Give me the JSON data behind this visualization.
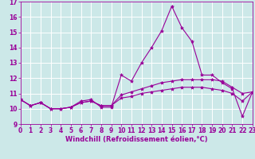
{
  "xlabel": "Windchill (Refroidissement éolien,°C)",
  "bg_color": "#cce8e8",
  "grid_color": "#ffffff",
  "line_color": "#990099",
  "x": [
    0,
    1,
    2,
    3,
    4,
    5,
    6,
    7,
    8,
    9,
    10,
    11,
    12,
    13,
    14,
    15,
    16,
    17,
    18,
    19,
    20,
    21,
    22,
    23
  ],
  "line1": [
    10.6,
    10.2,
    10.4,
    10.0,
    10.0,
    10.1,
    10.5,
    10.6,
    10.1,
    10.1,
    12.2,
    11.8,
    13.0,
    14.0,
    15.1,
    16.7,
    15.3,
    14.4,
    12.2,
    12.2,
    11.7,
    11.3,
    9.5,
    11.1
  ],
  "line2": [
    10.6,
    10.2,
    10.4,
    10.0,
    10.0,
    10.1,
    10.4,
    10.5,
    10.2,
    10.2,
    10.9,
    11.1,
    11.3,
    11.5,
    11.7,
    11.8,
    11.9,
    11.9,
    11.9,
    11.9,
    11.8,
    11.4,
    11.0,
    11.1
  ],
  "line3": [
    10.6,
    10.2,
    10.4,
    10.0,
    10.0,
    10.1,
    10.4,
    10.5,
    10.2,
    10.2,
    10.7,
    10.8,
    11.0,
    11.1,
    11.2,
    11.3,
    11.4,
    11.4,
    11.4,
    11.3,
    11.2,
    11.0,
    10.5,
    11.1
  ],
  "xlim": [
    0,
    23
  ],
  "ylim": [
    9,
    17
  ],
  "yticks": [
    9,
    10,
    11,
    12,
    13,
    14,
    15,
    16,
    17
  ],
  "xticks": [
    0,
    1,
    2,
    3,
    4,
    5,
    6,
    7,
    8,
    9,
    10,
    11,
    12,
    13,
    14,
    15,
    16,
    17,
    18,
    19,
    20,
    21,
    22,
    23
  ],
  "tick_fontsize": 5.5,
  "xlabel_fontsize": 6,
  "marker": "*",
  "markersize": 3,
  "linewidth": 0.8
}
